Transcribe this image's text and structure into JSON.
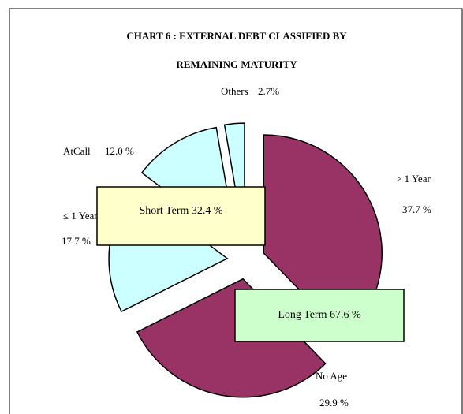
{
  "chart_data": {
    "type": "pie",
    "title": "CHART 6 : EXTERNAL DEBT CLASSIFIED BY",
    "subtitle": "REMAINING MATURITY",
    "categories": [
      "> 1 Year",
      "No Age",
      "≤ 1 Year",
      "AtCall",
      "Others"
    ],
    "values": [
      37.7,
      29.9,
      17.7,
      12.0,
      2.7
    ],
    "value_labels": [
      "37.7 %",
      "29.9 %",
      "17.7 %",
      "12.0 %",
      "2.7%"
    ],
    "colors": [
      "#993366",
      "#993366",
      "#ccffff",
      "#ccffff",
      "#ccffff"
    ],
    "annotations": [
      "Short Term 32.4 %",
      "Long Term 67.6 %"
    ]
  }
}
